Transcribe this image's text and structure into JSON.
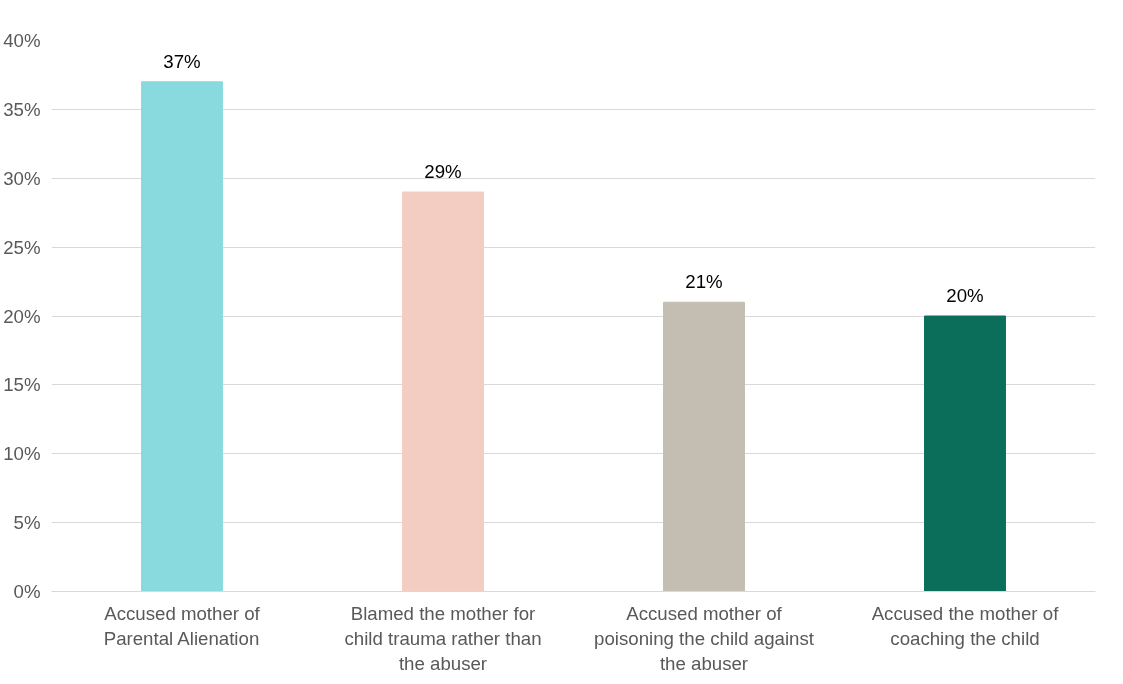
{
  "chart_data": {
    "type": "bar",
    "categories": [
      "Accused mother of\nParental Alienation",
      "Blamed the mother for\nchild trauma rather than\nthe abuser",
      "Accused mother of\npoisoning the child against\nthe abuser",
      "Accused the mother of\ncoaching the child"
    ],
    "values": [
      37,
      29,
      21,
      20
    ],
    "colors": [
      "#88dade",
      "#f4cdc2",
      "#c4bdb1",
      "#0b6e5b"
    ],
    "value_labels": [
      "37%",
      "29%",
      "21%",
      "20%"
    ],
    "ylim": [
      0,
      40
    ],
    "yticks": [
      {
        "value": 0,
        "label": "0%"
      },
      {
        "value": 5,
        "label": "5%"
      },
      {
        "value": 10,
        "label": "10%"
      },
      {
        "value": 15,
        "label": "15%"
      },
      {
        "value": 20,
        "label": "20%"
      },
      {
        "value": 25,
        "label": "25%"
      },
      {
        "value": 30,
        "label": "30%"
      },
      {
        "value": 35,
        "label": "35%"
      },
      {
        "value": 40,
        "label": "40%"
      }
    ],
    "grid": "y"
  }
}
